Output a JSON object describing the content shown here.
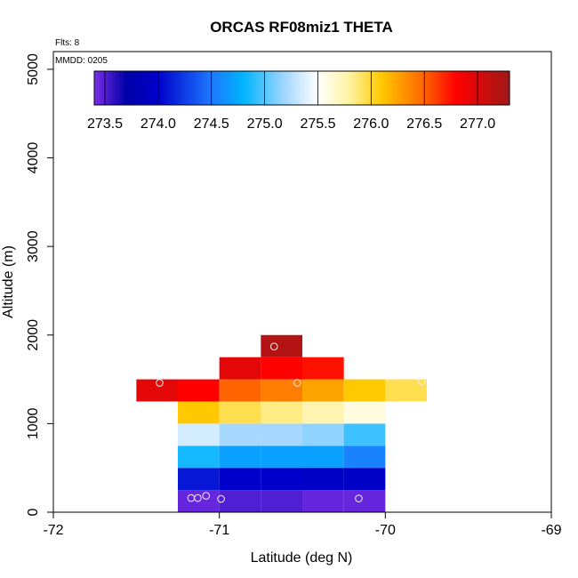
{
  "chart_data": {
    "type": "heatmap",
    "title": "ORCAS RF08miz1 THETA",
    "flights_note": "Flts: 8",
    "date_note": "MMDD: 0205",
    "xlabel": "Latitude (deg N)",
    "ylabel": "Altitude (m)",
    "xlim": [
      -72,
      -69
    ],
    "ylim": [
      0,
      5200
    ],
    "x_ticks": [
      "-72",
      "-71",
      "-70",
      "-69"
    ],
    "y_ticks": [
      "0",
      "1000",
      "2000",
      "3000",
      "4000",
      "5000"
    ],
    "grid": false,
    "bin_width_lat": 0.25,
    "bin_height_alt": 250,
    "colorbar": {
      "placement": "top-left",
      "range": [
        273.4,
        277.3
      ],
      "ticks": [
        "273.5",
        "274.0",
        "274.5",
        "275.0",
        "275.5",
        "276.0",
        "276.5",
        "277.0"
      ],
      "stops": [
        {
          "value": 273.4,
          "color": "#7a2ee8"
        },
        {
          "value": 273.7,
          "color": "#0000a8"
        },
        {
          "value": 274.0,
          "color": "#0000cc"
        },
        {
          "value": 274.5,
          "color": "#1e78ff"
        },
        {
          "value": 274.8,
          "color": "#00b4ff"
        },
        {
          "value": 275.2,
          "color": "#a6d8ff"
        },
        {
          "value": 275.5,
          "color": "#ffffff"
        },
        {
          "value": 275.8,
          "color": "#fff3a0"
        },
        {
          "value": 276.1,
          "color": "#ffc800"
        },
        {
          "value": 276.5,
          "color": "#ff6400"
        },
        {
          "value": 276.8,
          "color": "#ff0000"
        },
        {
          "value": 277.3,
          "color": "#a01818"
        }
      ]
    },
    "cells": [
      {
        "lat": -71.25,
        "alt": 0,
        "theta": 273.45
      },
      {
        "lat": -71.0,
        "alt": 0,
        "theta": 273.5
      },
      {
        "lat": -70.75,
        "alt": 0,
        "theta": 273.5
      },
      {
        "lat": -70.5,
        "alt": 0,
        "theta": 273.45
      },
      {
        "lat": -70.25,
        "alt": 0,
        "theta": 273.45
      },
      {
        "lat": -71.25,
        "alt": 250,
        "theta": 274.1
      },
      {
        "lat": -71.0,
        "alt": 250,
        "theta": 274.0
      },
      {
        "lat": -70.75,
        "alt": 250,
        "theta": 274.0
      },
      {
        "lat": -70.5,
        "alt": 250,
        "theta": 273.95
      },
      {
        "lat": -70.25,
        "alt": 250,
        "theta": 273.95
      },
      {
        "lat": -71.25,
        "alt": 500,
        "theta": 274.85
      },
      {
        "lat": -71.0,
        "alt": 500,
        "theta": 274.7
      },
      {
        "lat": -70.75,
        "alt": 500,
        "theta": 274.7
      },
      {
        "lat": -70.5,
        "alt": 500,
        "theta": 274.7
      },
      {
        "lat": -70.25,
        "alt": 500,
        "theta": 274.55
      },
      {
        "lat": -71.25,
        "alt": 750,
        "theta": 275.35
      },
      {
        "lat": -71.0,
        "alt": 750,
        "theta": 275.2
      },
      {
        "lat": -70.75,
        "alt": 750,
        "theta": 275.2
      },
      {
        "lat": -70.5,
        "alt": 750,
        "theta": 275.15
      },
      {
        "lat": -70.25,
        "alt": 750,
        "theta": 274.95
      },
      {
        "lat": -71.25,
        "alt": 1000,
        "theta": 276.1
      },
      {
        "lat": -71.0,
        "alt": 1000,
        "theta": 275.95
      },
      {
        "lat": -70.75,
        "alt": 1000,
        "theta": 275.85
      },
      {
        "lat": -70.5,
        "alt": 1000,
        "theta": 275.75
      },
      {
        "lat": -70.25,
        "alt": 1000,
        "theta": 275.6
      },
      {
        "lat": -71.5,
        "alt": 1250,
        "theta": 276.95
      },
      {
        "lat": -71.25,
        "alt": 1250,
        "theta": 276.8
      },
      {
        "lat": -71.0,
        "alt": 1250,
        "theta": 276.5
      },
      {
        "lat": -70.75,
        "alt": 1250,
        "theta": 276.4
      },
      {
        "lat": -70.5,
        "alt": 1250,
        "theta": 276.25
      },
      {
        "lat": -70.25,
        "alt": 1250,
        "theta": 276.1
      },
      {
        "lat": -70.0,
        "alt": 1250,
        "theta": 275.95
      },
      {
        "lat": -71.0,
        "alt": 1500,
        "theta": 276.95
      },
      {
        "lat": -70.75,
        "alt": 1500,
        "theta": 276.8
      },
      {
        "lat": -70.5,
        "alt": 1500,
        "theta": 276.75
      },
      {
        "lat": -70.75,
        "alt": 1750,
        "theta": 277.2
      }
    ],
    "points": [
      {
        "lat": -71.36,
        "alt": 1460
      },
      {
        "lat": -70.53,
        "alt": 1460
      },
      {
        "lat": -69.78,
        "alt": 1480
      },
      {
        "lat": -70.67,
        "alt": 1870
      },
      {
        "lat": -71.17,
        "alt": 160
      },
      {
        "lat": -71.13,
        "alt": 160
      },
      {
        "lat": -71.08,
        "alt": 185
      },
      {
        "lat": -70.99,
        "alt": 150
      },
      {
        "lat": -70.16,
        "alt": 155
      }
    ]
  }
}
